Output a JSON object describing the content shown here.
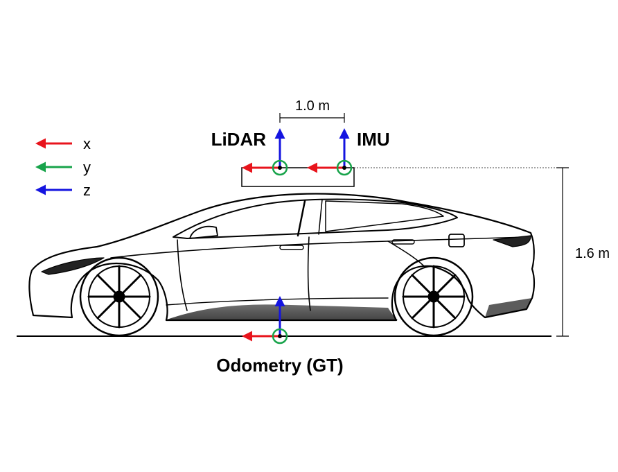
{
  "legend": {
    "items": [
      {
        "label": "x",
        "color": "#e8141c"
      },
      {
        "label": "y",
        "color": "#17a34a"
      },
      {
        "label": "z",
        "color": "#1414e0"
      }
    ]
  },
  "sensors": {
    "lidar": {
      "label": "LiDAR"
    },
    "imu": {
      "label": "IMU"
    },
    "odometry": {
      "label": "Odometry (GT)"
    }
  },
  "dimensions": {
    "sensor_spacing": "1.0 m",
    "sensor_height": "1.6 m"
  },
  "colors": {
    "x_axis": "#e8141c",
    "y_axis": "#17a34a",
    "z_axis": "#1414e0",
    "outline": "#000000"
  }
}
